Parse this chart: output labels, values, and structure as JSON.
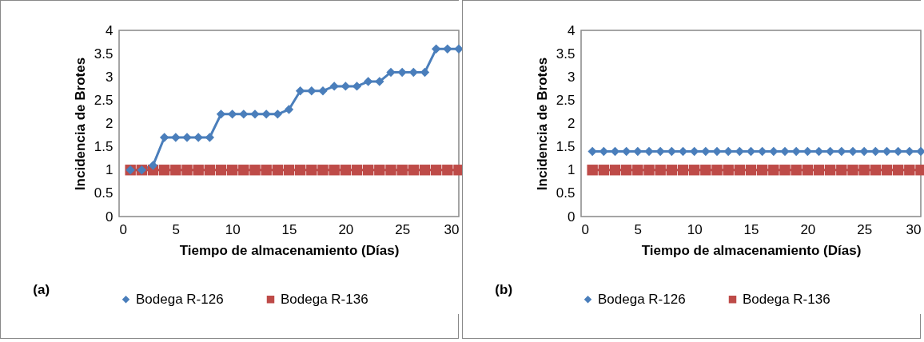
{
  "chart_data": [
    {
      "type": "line",
      "xlabel": "Tiempo de almacenamiento (Días)",
      "ylabel": "Incidencia de Brotes",
      "annotations": [
        "(a)"
      ],
      "x": [
        1,
        2,
        3,
        4,
        5,
        6,
        7,
        8,
        9,
        10,
        11,
        12,
        13,
        14,
        15,
        16,
        17,
        18,
        19,
        20,
        21,
        22,
        23,
        24,
        25,
        26,
        27,
        28,
        29,
        30
      ],
      "xlim": [
        0,
        30
      ],
      "xticks": [
        0,
        5,
        10,
        15,
        20,
        25,
        30
      ],
      "ylim": [
        0,
        4
      ],
      "yticks": [
        0,
        0.5,
        1,
        1.5,
        2,
        2.5,
        3,
        3.5,
        4
      ],
      "grid": false,
      "legend": "bottom",
      "series": [
        {
          "name": "Bodega R-126",
          "color": "#4a7ebb",
          "marker": "diamond",
          "values": [
            1,
            1,
            1.1,
            1.7,
            1.7,
            1.7,
            1.7,
            1.7,
            2.2,
            2.2,
            2.2,
            2.2,
            2.2,
            2.2,
            2.3,
            2.7,
            2.7,
            2.7,
            2.8,
            2.8,
            2.8,
            2.9,
            2.9,
            3.1,
            3.1,
            3.1,
            3.1,
            3.6,
            3.6,
            3.6
          ]
        },
        {
          "name": "Bodega R-136",
          "color": "#be4b48",
          "marker": "square",
          "values": [
            1,
            1,
            1,
            1,
            1,
            1,
            1,
            1,
            1,
            1,
            1,
            1,
            1,
            1,
            1,
            1,
            1,
            1,
            1,
            1,
            1,
            1,
            1,
            1,
            1,
            1,
            1,
            1,
            1,
            1
          ]
        }
      ]
    },
    {
      "type": "line",
      "xlabel": "Tiempo de almacenamiento (Días)",
      "ylabel": "Incidencia de Brotes",
      "annotations": [
        "(b)"
      ],
      "x": [
        1,
        2,
        3,
        4,
        5,
        6,
        7,
        8,
        9,
        10,
        11,
        12,
        13,
        14,
        15,
        16,
        17,
        18,
        19,
        20,
        21,
        22,
        23,
        24,
        25,
        26,
        27,
        28,
        29,
        30
      ],
      "xlim": [
        0,
        30
      ],
      "xticks": [
        0,
        5,
        10,
        15,
        20,
        25,
        30
      ],
      "ylim": [
        0,
        4
      ],
      "yticks": [
        0,
        0.5,
        1,
        1.5,
        2,
        2.5,
        3,
        3.5,
        4
      ],
      "grid": false,
      "legend": "bottom",
      "series": [
        {
          "name": "Bodega R-126",
          "color": "#4a7ebb",
          "marker": "diamond",
          "values": [
            1.4,
            1.4,
            1.4,
            1.4,
            1.4,
            1.4,
            1.4,
            1.4,
            1.4,
            1.4,
            1.4,
            1.4,
            1.4,
            1.4,
            1.4,
            1.4,
            1.4,
            1.4,
            1.4,
            1.4,
            1.4,
            1.4,
            1.4,
            1.4,
            1.4,
            1.4,
            1.4,
            1.4,
            1.4,
            1.4
          ]
        },
        {
          "name": "Bodega R-136",
          "color": "#be4b48",
          "marker": "square",
          "values": [
            1,
            1,
            1,
            1,
            1,
            1,
            1,
            1,
            1,
            1,
            1,
            1,
            1,
            1,
            1,
            1,
            1,
            1,
            1,
            1,
            1,
            1,
            1,
            1,
            1,
            1,
            1,
            1,
            1,
            1
          ]
        }
      ]
    }
  ]
}
